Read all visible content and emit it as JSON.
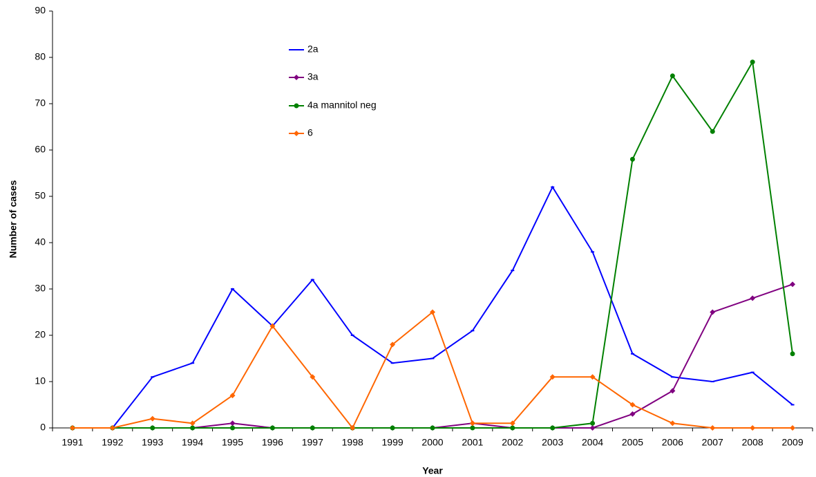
{
  "chart_data": {
    "type": "line",
    "x_label": "Year",
    "y_label": "Number of cases",
    "categories": [
      "1991",
      "1992",
      "1993",
      "1994",
      "1995",
      "1996",
      "1997",
      "1998",
      "1999",
      "2000",
      "2001",
      "2002",
      "2003",
      "2004",
      "2005",
      "2006",
      "2007",
      "2008",
      "2009"
    ],
    "ylim": [
      0,
      90
    ],
    "yticks": [
      0,
      10,
      20,
      30,
      40,
      50,
      60,
      70,
      80,
      90
    ],
    "legend": "top-center",
    "series": [
      {
        "name": "2a",
        "color": "#0000ff",
        "marker": "dash",
        "values": [
          0,
          0,
          11,
          14,
          30,
          22,
          32,
          20,
          14,
          15,
          21,
          34,
          52,
          38,
          16,
          11,
          10,
          12,
          5
        ]
      },
      {
        "name": "3a",
        "color": "#800080",
        "marker": "diamond",
        "values": [
          0,
          0,
          0,
          0,
          1,
          0,
          0,
          0,
          0,
          0,
          1,
          0,
          0,
          0,
          3,
          8,
          25,
          28,
          31
        ]
      },
      {
        "name": "4a mannitol neg",
        "color": "#008000",
        "marker": "circle",
        "values": [
          0,
          0,
          0,
          0,
          0,
          0,
          0,
          0,
          0,
          0,
          0,
          0,
          0,
          1,
          58,
          76,
          64,
          79,
          16
        ]
      },
      {
        "name": "6",
        "color": "#ff6600",
        "marker": "diamond",
        "values": [
          0,
          0,
          2,
          1,
          7,
          22,
          11,
          0,
          18,
          25,
          1,
          1,
          11,
          11,
          5,
          1,
          0,
          0,
          0
        ]
      }
    ]
  }
}
